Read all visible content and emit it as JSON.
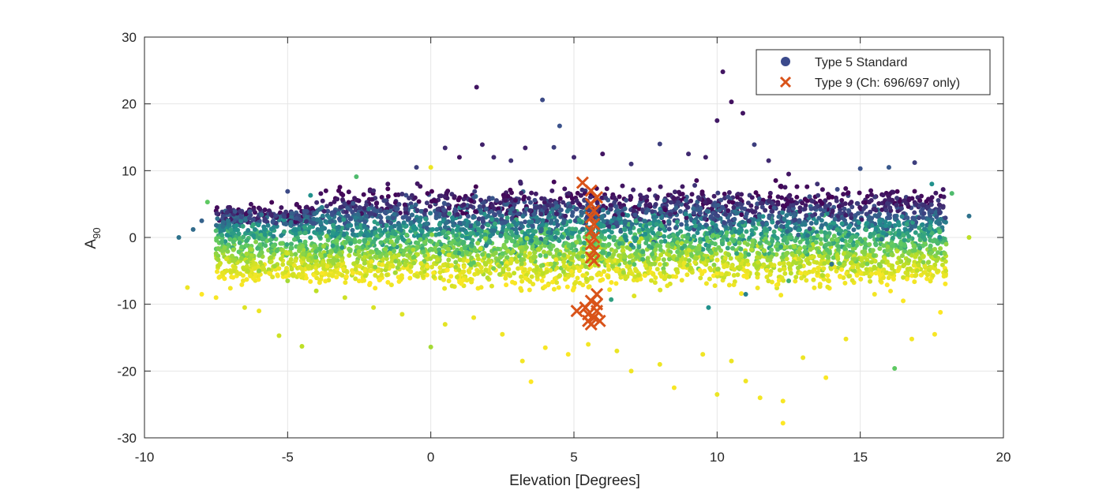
{
  "chart_data": {
    "type": "scatter",
    "xlabel": "Elevation [Degrees]",
    "ylabel": {
      "base": "A",
      "subscript": "90"
    },
    "xlim": [
      -10,
      20
    ],
    "ylim": [
      -30,
      30
    ],
    "xticks": [
      "-10",
      "-5",
      "0",
      "5",
      "10",
      "15",
      "20"
    ],
    "yticks": [
      "30",
      "20",
      "10",
      "0",
      "-10",
      "-20",
      "-30"
    ],
    "grid": true,
    "legend_position": "top-right",
    "colormap": [
      "#440154",
      "#3b528b",
      "#21918c",
      "#5ec962",
      "#bddf26",
      "#fde725"
    ],
    "series": [
      {
        "name": "Type 5 Standard",
        "marker": "circle",
        "legend_color": "#3b4a8c",
        "points": [
          [
            -8.8,
            0.0,
            0.3
          ],
          [
            -8.3,
            1.2,
            0.28
          ],
          [
            -8.0,
            2.5,
            0.25
          ],
          [
            -7.8,
            5.3,
            0.6
          ],
          [
            -7.5,
            1.0,
            0.55
          ],
          [
            -7.2,
            -1.5,
            0.7
          ],
          [
            -8.5,
            -7.5,
            0.95
          ],
          [
            -8.0,
            -8.5,
            1.0
          ],
          [
            -7.5,
            -9.0,
            0.98
          ],
          [
            -7.0,
            -7.6,
            0.97
          ],
          [
            -6.5,
            -10.5,
            0.9
          ],
          [
            -6.0,
            -11.0,
            0.95
          ],
          [
            -5.3,
            -14.7,
            0.85
          ],
          [
            -4.5,
            -16.3,
            0.8
          ],
          [
            -5.5,
            2.5,
            0.2
          ],
          [
            -5.0,
            6.9,
            0.18
          ],
          [
            -4.2,
            6.3,
            0.4
          ],
          [
            -3.8,
            4.5,
            0.35
          ],
          [
            -3.0,
            5.0,
            0.15
          ],
          [
            -2.6,
            9.1,
            0.55
          ],
          [
            -2.0,
            7.0,
            0.1
          ],
          [
            -1.5,
            8.0,
            0.05
          ],
          [
            -1.0,
            6.5,
            0.12
          ],
          [
            -0.5,
            10.5,
            0.15
          ],
          [
            0.0,
            10.5,
            0.95
          ],
          [
            0.5,
            13.4,
            0.1
          ],
          [
            1.0,
            12.0,
            0.05
          ],
          [
            1.6,
            22.5,
            0.05
          ],
          [
            1.8,
            13.9,
            0.08
          ],
          [
            2.2,
            12.0,
            0.1
          ],
          [
            2.8,
            11.5,
            0.12
          ],
          [
            3.3,
            13.4,
            0.08
          ],
          [
            3.9,
            20.6,
            0.18
          ],
          [
            4.5,
            16.7,
            0.2
          ],
          [
            4.3,
            13.5,
            0.15
          ],
          [
            5.0,
            12.0,
            0.1
          ],
          [
            6.0,
            12.5,
            0.05
          ],
          [
            7.0,
            11.0,
            0.12
          ],
          [
            8.0,
            14.0,
            0.15
          ],
          [
            9.0,
            12.5,
            0.1
          ],
          [
            9.6,
            12.0,
            0.08
          ],
          [
            10.0,
            17.5,
            0.06
          ],
          [
            10.2,
            24.8,
            0.05
          ],
          [
            10.5,
            20.3,
            0.04
          ],
          [
            10.9,
            18.6,
            0.05
          ],
          [
            11.3,
            13.9,
            0.15
          ],
          [
            11.8,
            11.5,
            0.1
          ],
          [
            12.5,
            9.5,
            0.05
          ],
          [
            13.5,
            8.0,
            0.12
          ],
          [
            14.2,
            7.2,
            0.18
          ],
          [
            15.0,
            10.3,
            0.2
          ],
          [
            16.0,
            10.5,
            0.22
          ],
          [
            16.9,
            11.2,
            0.15
          ],
          [
            17.5,
            8.0,
            0.4
          ],
          [
            18.2,
            6.6,
            0.55
          ],
          [
            18.8,
            3.2,
            0.3
          ],
          [
            18.8,
            0.0,
            0.8
          ],
          [
            18.0,
            -1.0,
            0.7
          ],
          [
            17.5,
            -4.5,
            0.9
          ],
          [
            16.5,
            -6.0,
            0.85
          ],
          [
            15.5,
            -8.5,
            0.97
          ],
          [
            16.5,
            -9.5,
            0.99
          ],
          [
            17.8,
            -11.2,
            1.0
          ],
          [
            17.6,
            -14.5,
            0.98
          ],
          [
            16.8,
            -15.2,
            0.97
          ],
          [
            16.2,
            -19.6,
            0.6
          ],
          [
            14.5,
            -15.2,
            0.96
          ],
          [
            13.8,
            -21.0,
            0.99
          ],
          [
            13.0,
            -18.0,
            0.95
          ],
          [
            12.3,
            -27.8,
            1.0
          ],
          [
            12.3,
            -24.5,
            0.98
          ],
          [
            11.5,
            -24.0,
            0.97
          ],
          [
            11.0,
            -21.5,
            0.96
          ],
          [
            10.5,
            -18.5,
            0.95
          ],
          [
            10.0,
            -23.5,
            0.94
          ],
          [
            9.5,
            -17.5,
            0.96
          ],
          [
            8.5,
            -22.5,
            0.98
          ],
          [
            8.0,
            -19.0,
            0.95
          ],
          [
            7.0,
            -20.0,
            0.96
          ],
          [
            6.5,
            -17.0,
            0.94
          ],
          [
            5.5,
            -16.0,
            0.97
          ],
          [
            4.8,
            -17.5,
            0.99
          ],
          [
            4.0,
            -16.5,
            0.98
          ],
          [
            3.5,
            -21.6,
            1.0
          ],
          [
            3.2,
            -18.5,
            0.97
          ],
          [
            2.5,
            -14.5,
            0.96
          ],
          [
            1.5,
            -12.0,
            0.95
          ],
          [
            0.5,
            -13.0,
            0.92
          ],
          [
            0.0,
            -16.4,
            0.75
          ],
          [
            -1.0,
            -11.5,
            0.9
          ],
          [
            -2.0,
            -10.5,
            0.88
          ],
          [
            -3.0,
            -9.0,
            0.85
          ],
          [
            -4.0,
            -8.0,
            0.8
          ],
          [
            -5.0,
            -6.5,
            0.75
          ],
          [
            -6.0,
            -5.0,
            0.7
          ],
          [
            9.7,
            -10.5,
            0.4
          ],
          [
            6.3,
            -9.3,
            0.45
          ],
          [
            11.0,
            -8.5,
            0.35
          ],
          [
            12.5,
            -6.5,
            0.5
          ],
          [
            14.0,
            -4.0,
            0.3
          ]
        ]
      },
      {
        "name": "Type 9 (Ch: 696/697 only)",
        "marker": "x",
        "color": "#d95319",
        "points": [
          [
            5.3,
            8.2
          ],
          [
            5.6,
            7.0
          ],
          [
            5.8,
            6.0
          ],
          [
            5.6,
            5.0
          ],
          [
            5.7,
            4.0
          ],
          [
            5.6,
            3.0
          ],
          [
            5.7,
            2.0
          ],
          [
            5.6,
            1.0
          ],
          [
            5.7,
            0.0
          ],
          [
            5.6,
            -1.0
          ],
          [
            5.7,
            -2.0
          ],
          [
            5.6,
            -3.0
          ],
          [
            5.7,
            -3.5
          ],
          [
            5.8,
            -8.5
          ],
          [
            5.6,
            -9.5
          ],
          [
            5.4,
            -10.5
          ],
          [
            5.1,
            -11.0
          ],
          [
            5.5,
            -11.5
          ],
          [
            5.8,
            -10.0
          ],
          [
            5.7,
            -12.0
          ],
          [
            5.9,
            -12.5
          ],
          [
            5.6,
            -13.0
          ],
          [
            5.8,
            -11.0
          ],
          [
            5.5,
            -12.5
          ]
        ]
      }
    ]
  }
}
